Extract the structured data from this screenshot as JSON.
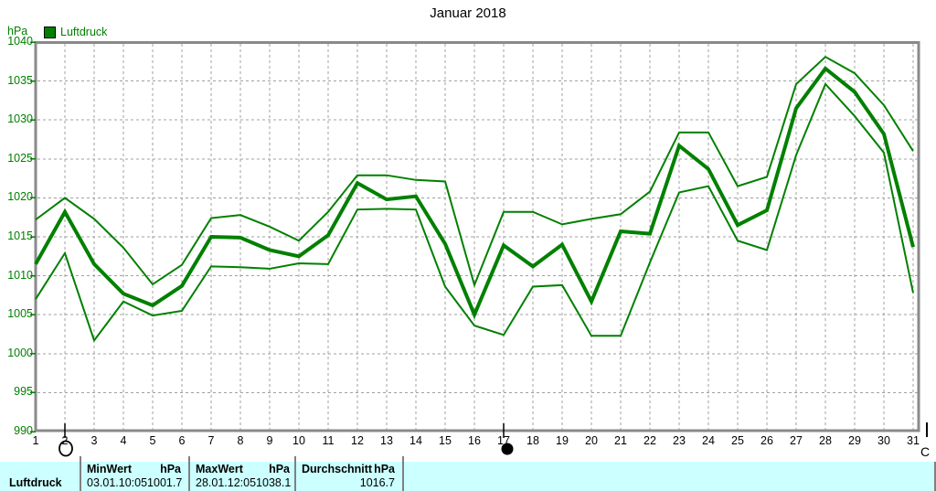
{
  "title": "Januar 2018",
  "y_axis_unit": "hPa",
  "legend": {
    "label": "Luftdruck"
  },
  "colors": {
    "series_green": "#008000",
    "axis_label_green": "#008000",
    "grid_gray": "#a0a0a0",
    "frame_gray": "#8a8a8a",
    "table_cyan": "#ccffff",
    "marker_black": "#000000"
  },
  "markers": {
    "open_circle_day": 2,
    "filled_circle_day": 17,
    "right_bar_glyph": "|",
    "right_letter": "C"
  },
  "summary_table": {
    "row_label": "Luftdruck",
    "min": {
      "header_left": "MinWert",
      "header_right": "hPa",
      "date": "03.01.",
      "time": "10:05",
      "value": "1001.7"
    },
    "max": {
      "header_left": "MaxWert",
      "header_right": "hPa",
      "date": "28.01.",
      "time": "12:05",
      "value": "1038.1"
    },
    "avg": {
      "header_left": "Durchschnitt",
      "header_right": "hPa",
      "value": "1016.7"
    }
  },
  "chart_data": {
    "type": "line",
    "title": "Januar 2018",
    "ylabel": "hPa",
    "xlabel": "",
    "grid": true,
    "legend_position": "top-left",
    "legend_entries": [
      "Luftdruck"
    ],
    "ylim": [
      990,
      1040
    ],
    "y_ticks": [
      990,
      995,
      1000,
      1005,
      1010,
      1015,
      1020,
      1025,
      1030,
      1035,
      1040
    ],
    "x": [
      1,
      2,
      3,
      4,
      5,
      6,
      7,
      8,
      9,
      10,
      11,
      12,
      13,
      14,
      15,
      16,
      17,
      18,
      19,
      20,
      21,
      22,
      23,
      24,
      25,
      26,
      27,
      28,
      29,
      30,
      31
    ],
    "series": [
      {
        "name": "Luftdruck Maximum",
        "color": "#008000",
        "thick": false,
        "values": [
          1017.2,
          1020.0,
          1017.3,
          1013.6,
          1008.9,
          1011.4,
          1017.4,
          1017.8,
          1016.3,
          1014.5,
          1018.2,
          1022.9,
          1022.9,
          1022.3,
          1022.1,
          1008.8,
          1018.2,
          1018.2,
          1016.6,
          1017.3,
          1017.9,
          1020.8,
          1028.4,
          1028.4,
          1021.5,
          1022.7,
          1034.6,
          1038.1,
          1036.0,
          1031.9,
          1026.0
        ]
      },
      {
        "name": "Luftdruck Minimum",
        "color": "#008000",
        "thick": false,
        "values": [
          1007.0,
          1012.9,
          1001.7,
          1006.7,
          1004.9,
          1005.5,
          1011.2,
          1011.1,
          1010.9,
          1011.6,
          1011.5,
          1018.5,
          1018.6,
          1018.5,
          1008.6,
          1003.6,
          1002.4,
          1008.6,
          1008.8,
          1002.3,
          1002.3,
          1011.7,
          1020.7,
          1021.5,
          1014.5,
          1013.3,
          1025.5,
          1034.6,
          1030.5,
          1025.8,
          1007.8
        ]
      },
      {
        "name": "Luftdruck Durchschnitt",
        "color": "#008000",
        "thick": true,
        "values": [
          1011.5,
          1018.2,
          1011.5,
          1007.7,
          1006.2,
          1008.7,
          1015.0,
          1014.9,
          1013.3,
          1012.5,
          1015.2,
          1021.9,
          1019.8,
          1020.2,
          1014.1,
          1005.0,
          1013.9,
          1011.2,
          1014.0,
          1006.7,
          1015.7,
          1015.4,
          1026.7,
          1023.7,
          1016.5,
          1018.4,
          1031.5,
          1036.6,
          1033.6,
          1028.2,
          1013.7
        ]
      }
    ]
  }
}
